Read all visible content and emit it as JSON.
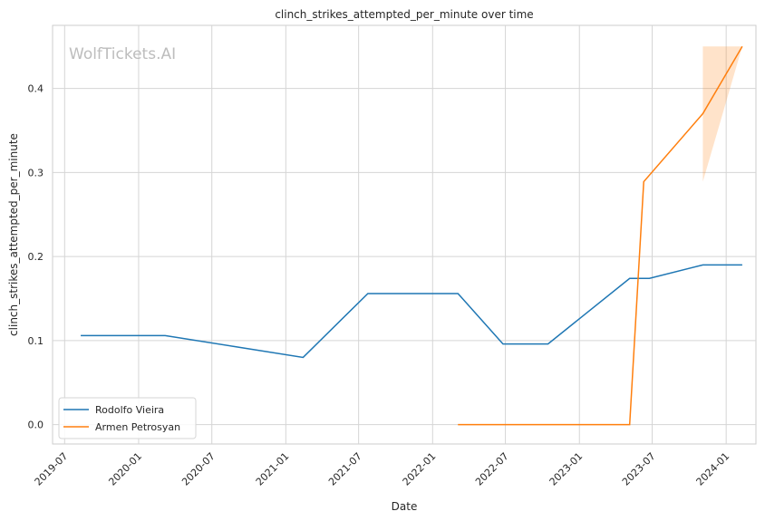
{
  "chart_data": {
    "type": "line",
    "title": "clinch_strikes_attempted_per_minute over time",
    "xlabel": "Date",
    "ylabel": "clinch_strikes_attempted_per_minute",
    "watermark": "WolfTickets.AI",
    "x_ticks": [
      "2019-07",
      "2020-01",
      "2020-07",
      "2021-01",
      "2021-07",
      "2022-01",
      "2022-07",
      "2023-01",
      "2023-07",
      "2024-01"
    ],
    "y_ticks": [
      "0.0",
      "0.1",
      "0.2",
      "0.3",
      "0.4"
    ],
    "xlim": [
      "2019-06-01",
      "2024-03-15"
    ],
    "ylim": [
      -0.023,
      0.475
    ],
    "grid": true,
    "legend_position": "lower-left",
    "series": [
      {
        "name": "Rodolfo Vieira",
        "color": "#1f77b4",
        "points": [
          {
            "x": "2019-08-10",
            "y": 0.106
          },
          {
            "x": "2020-03-07",
            "y": 0.106
          },
          {
            "x": "2021-02-13",
            "y": 0.08
          },
          {
            "x": "2021-07-24",
            "y": 0.156
          },
          {
            "x": "2022-03-05",
            "y": 0.156
          },
          {
            "x": "2022-06-25",
            "y": 0.096
          },
          {
            "x": "2022-10-15",
            "y": 0.096
          },
          {
            "x": "2023-05-06",
            "y": 0.174
          },
          {
            "x": "2023-06-24",
            "y": 0.174
          },
          {
            "x": "2023-11-04",
            "y": 0.19
          },
          {
            "x": "2024-02-10",
            "y": 0.19
          }
        ]
      },
      {
        "name": "Armen Petrosyan",
        "color": "#ff7f0e",
        "points": [
          {
            "x": "2022-03-05",
            "y": 0.0
          },
          {
            "x": "2023-05-06",
            "y": 0.0
          },
          {
            "x": "2023-06-10",
            "y": 0.289
          },
          {
            "x": "2023-11-04",
            "y": 0.37
          },
          {
            "x": "2024-02-10",
            "y": 0.45
          }
        ],
        "band": [
          {
            "x": "2023-11-04",
            "lo": 0.289,
            "hi": 0.45
          },
          {
            "x": "2024-02-10",
            "lo": 0.45,
            "hi": 0.45
          }
        ]
      }
    ]
  }
}
